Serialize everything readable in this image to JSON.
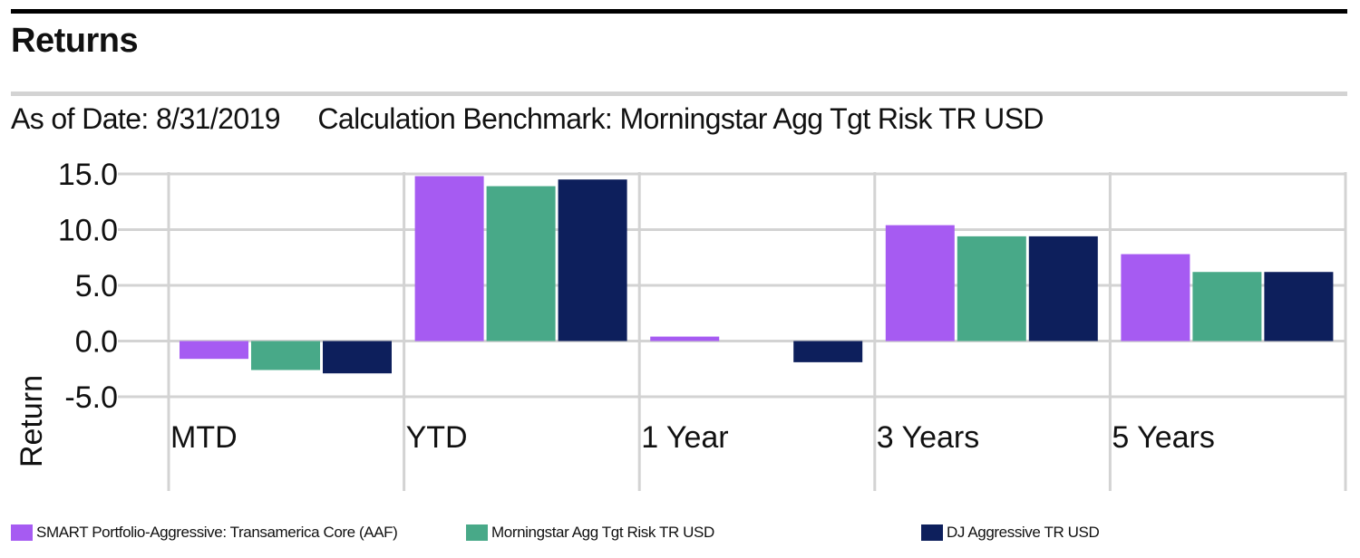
{
  "header": {
    "title": "Returns",
    "as_of_label": "As of Date: 8/31/2019",
    "benchmark_label": "Calculation Benchmark: Morningstar Agg Tgt Risk TR USD"
  },
  "colors": {
    "series_1": "#a65bf2",
    "series_2": "#48a988",
    "series_3": "#0d1f5c",
    "grid": "#d3d3d3"
  },
  "chart_data": {
    "type": "bar",
    "categories": [
      "MTD",
      "YTD",
      "1 Year",
      "3 Years",
      "5 Years"
    ],
    "series": [
      {
        "name": "SMART Portfolio-Aggressive: Transamerica Core (AAF)",
        "values": [
          -1.6,
          14.8,
          0.4,
          10.4,
          7.8
        ]
      },
      {
        "name": "Morningstar Agg Tgt Risk TR USD",
        "values": [
          -2.6,
          13.9,
          0.0,
          9.4,
          6.2
        ]
      },
      {
        "name": "DJ Aggressive TR USD",
        "values": [
          -2.9,
          14.5,
          -1.9,
          9.4,
          6.2
        ]
      }
    ],
    "yticks": [
      "15.0",
      "10.0",
      "5.0",
      "0.0",
      "-5.0"
    ],
    "ylabel": "Return",
    "xlabel": "",
    "ylim": [
      -5,
      15
    ],
    "grid": true,
    "legend_position": "bottom"
  }
}
